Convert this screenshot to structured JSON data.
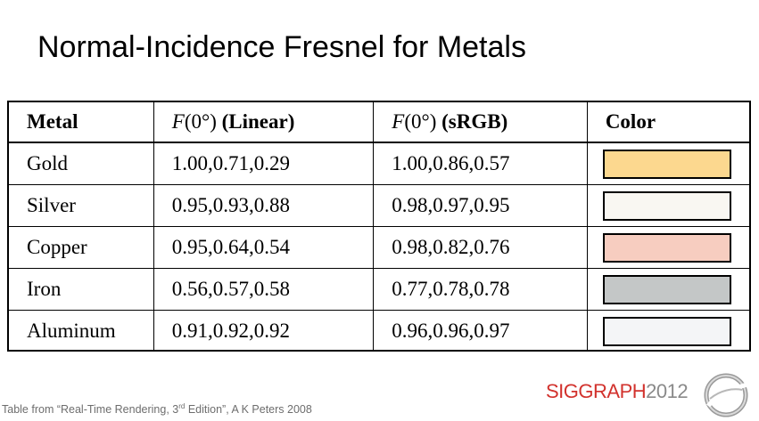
{
  "title": "Normal-Incidence Fresnel for Metals",
  "table": {
    "headers": {
      "metal": "Metal",
      "linear_f": "F",
      "linear_arg": "(0°)",
      "linear_label": "(Linear)",
      "srgb_f": "F",
      "srgb_arg": "(0°)",
      "srgb_label": "(sRGB)",
      "color": "Color"
    },
    "rows": [
      {
        "metal": "Gold",
        "linear": "1.00,0.71,0.29",
        "srgb": "1.00,0.86,0.57",
        "swatch": "#fcd88f"
      },
      {
        "metal": "Silver",
        "linear": "0.95,0.93,0.88",
        "srgb": "0.98,0.97,0.95",
        "swatch": "#f9f7f2"
      },
      {
        "metal": "Copper",
        "linear": "0.95,0.64,0.54",
        "srgb": "0.98,0.82,0.76",
        "swatch": "#f7cdc0"
      },
      {
        "metal": "Iron",
        "linear": "0.56,0.57,0.58",
        "srgb": "0.77,0.78,0.78",
        "swatch": "#c4c7c7"
      },
      {
        "metal": "Aluminum",
        "linear": "0.91,0.92,0.92",
        "srgb": "0.96,0.96,0.97",
        "swatch": "#f4f5f7"
      }
    ]
  },
  "footer": {
    "prefix": "Table from “Real-Time Rendering, 3",
    "sup": "rd",
    "suffix": " Edition”, A K Peters 2008"
  },
  "logo": {
    "word": "SIGGRAPH",
    "year": "2012",
    "color": "#d2322d"
  }
}
